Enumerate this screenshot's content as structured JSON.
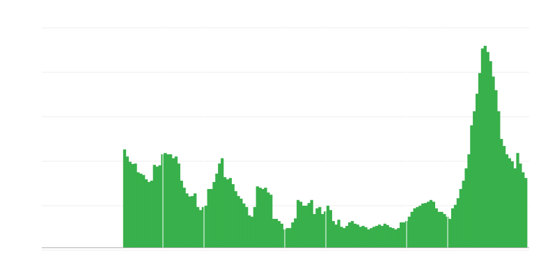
{
  "chart_data": {
    "type": "bar",
    "title": "",
    "xlabel": "",
    "ylabel": "",
    "ylim": [
      0,
      5
    ],
    "grid": true,
    "bar_color": "#38b04b",
    "grid_color": "#eeeeee",
    "baseline_color": "#b3b3b3",
    "values": [
      0,
      0,
      0,
      0,
      0,
      0,
      0,
      0,
      0,
      0,
      0,
      0,
      0,
      0,
      0,
      0,
      0,
      0,
      0,
      0,
      0,
      0,
      0,
      0,
      0,
      0,
      0,
      0,
      0,
      0,
      2.23,
      2.07,
      1.95,
      1.9,
      1.91,
      1.71,
      1.68,
      1.65,
      1.55,
      1.49,
      1.52,
      1.88,
      1.84,
      1.87,
      2.12,
      2.15,
      2.12,
      2.12,
      2.03,
      2.07,
      1.91,
      1.52,
      1.36,
      1.23,
      1.16,
      1.17,
      1.23,
      0.92,
      0.85,
      0.92,
      0.95,
      1.33,
      1.33,
      1.49,
      1.68,
      1.91,
      2.03,
      1.6,
      1.55,
      1.58,
      1.44,
      1.28,
      1.17,
      1.11,
      1.0,
      0.92,
      0.73,
      0.7,
      0.92,
      1.39,
      1.36,
      1.33,
      1.36,
      1.25,
      1.2,
      0.65,
      0.65,
      0.6,
      0.54,
      0.41,
      0.44,
      0.44,
      0.57,
      0.66,
      1.08,
      1.04,
      0.95,
      0.95,
      1.01,
      1.08,
      0.76,
      0.89,
      0.92,
      0.76,
      0.82,
      0.95,
      0.85,
      0.6,
      0.52,
      0.63,
      0.47,
      0.44,
      0.49,
      0.57,
      0.6,
      0.54,
      0.52,
      0.47,
      0.49,
      0.46,
      0.41,
      0.44,
      0.47,
      0.49,
      0.52,
      0.49,
      0.54,
      0.51,
      0.46,
      0.44,
      0.41,
      0.44,
      0.57,
      0.57,
      0.6,
      0.7,
      0.81,
      0.89,
      0.92,
      0.95,
      1.0,
      1.01,
      1.04,
      1.08,
      1.04,
      0.89,
      0.81,
      0.81,
      0.76,
      0.7,
      0.65,
      0.89,
      0.97,
      1.12,
      1.33,
      1.52,
      1.8,
      2.12,
      2.78,
      3.1,
      3.5,
      3.97,
      4.53,
      4.59,
      4.45,
      4.24,
      3.89,
      3.58,
      3.1,
      2.47,
      2.31,
      2.12,
      2.03,
      1.96,
      1.8,
      2.15,
      1.91,
      1.71,
      1.58
    ]
  }
}
